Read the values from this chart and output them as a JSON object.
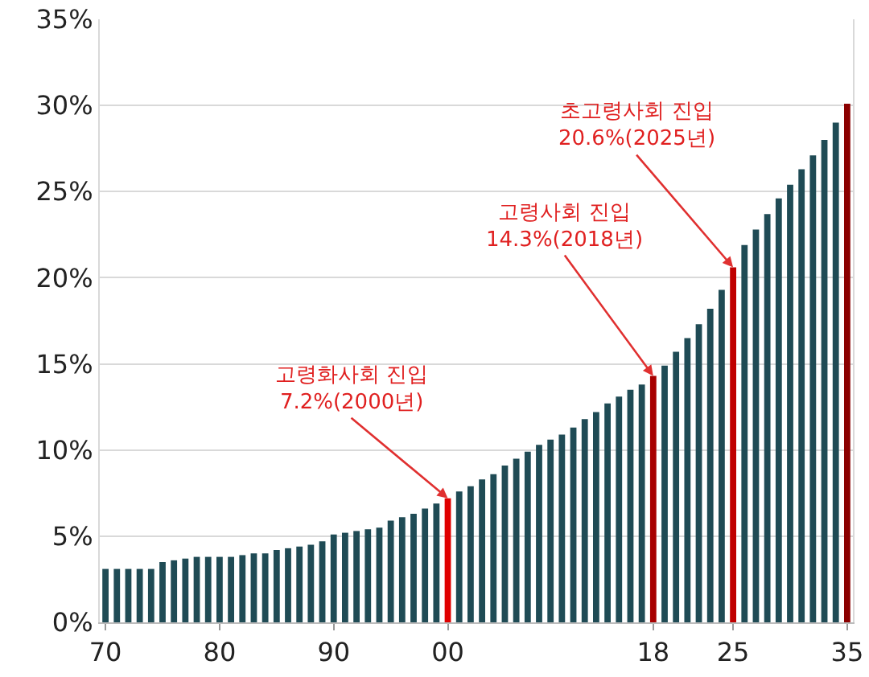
{
  "chart_data": {
    "type": "bar",
    "x": [
      1970,
      1971,
      1972,
      1973,
      1974,
      1975,
      1976,
      1977,
      1978,
      1979,
      1980,
      1981,
      1982,
      1983,
      1984,
      1985,
      1986,
      1987,
      1988,
      1989,
      1990,
      1991,
      1992,
      1993,
      1994,
      1995,
      1996,
      1997,
      1998,
      1999,
      2000,
      2001,
      2002,
      2003,
      2004,
      2005,
      2006,
      2007,
      2008,
      2009,
      2010,
      2011,
      2012,
      2013,
      2014,
      2015,
      2016,
      2017,
      2018,
      2019,
      2020,
      2021,
      2022,
      2023,
      2024,
      2025,
      2026,
      2027,
      2028,
      2029,
      2030,
      2031,
      2032,
      2033,
      2034,
      2035
    ],
    "values": [
      3.1,
      3.1,
      3.1,
      3.1,
      3.1,
      3.5,
      3.6,
      3.7,
      3.8,
      3.8,
      3.8,
      3.8,
      3.9,
      4.0,
      4.0,
      4.2,
      4.3,
      4.4,
      4.5,
      4.7,
      5.1,
      5.2,
      5.3,
      5.4,
      5.5,
      5.9,
      6.1,
      6.3,
      6.6,
      6.9,
      7.2,
      7.6,
      7.9,
      8.3,
      8.6,
      9.1,
      9.5,
      9.9,
      10.3,
      10.6,
      10.9,
      11.3,
      11.8,
      12.2,
      12.7,
      13.1,
      13.5,
      13.8,
      14.3,
      14.9,
      15.7,
      16.5,
      17.3,
      18.2,
      19.3,
      20.6,
      21.9,
      22.8,
      23.7,
      24.6,
      25.4,
      26.3,
      27.1,
      28.0,
      29.0,
      30.1
    ],
    "colors": [
      "#1f4b55",
      "#1f4b55",
      "#1f4b55",
      "#1f4b55",
      "#1f4b55",
      "#1f4b55",
      "#1f4b55",
      "#1f4b55",
      "#1f4b55",
      "#1f4b55",
      "#1f4b55",
      "#1f4b55",
      "#1f4b55",
      "#1f4b55",
      "#1f4b55",
      "#1f4b55",
      "#1f4b55",
      "#1f4b55",
      "#1f4b55",
      "#1f4b55",
      "#1f4b55",
      "#1f4b55",
      "#1f4b55",
      "#1f4b55",
      "#1f4b55",
      "#1f4b55",
      "#1f4b55",
      "#1f4b55",
      "#1f4b55",
      "#1f4b55",
      "#e00000",
      "#1f4b55",
      "#1f4b55",
      "#1f4b55",
      "#1f4b55",
      "#1f4b55",
      "#1f4b55",
      "#1f4b55",
      "#1f4b55",
      "#1f4b55",
      "#1f4b55",
      "#1f4b55",
      "#1f4b55",
      "#1f4b55",
      "#1f4b55",
      "#1f4b55",
      "#1f4b55",
      "#1f4b55",
      "#a80000",
      "#1f4b55",
      "#1f4b55",
      "#1f4b55",
      "#1f4b55",
      "#1f4b55",
      "#1f4b55",
      "#c00000",
      "#1f4b55",
      "#1f4b55",
      "#1f4b55",
      "#1f4b55",
      "#1f4b55",
      "#1f4b55",
      "#1f4b55",
      "#1f4b55",
      "#1f4b55",
      "#8b0000"
    ],
    "xlim": [
      1969.5,
      2035.5
    ],
    "xticks": [
      {
        "value": 1970,
        "label": "70"
      },
      {
        "value": 1980,
        "label": "80"
      },
      {
        "value": 1990,
        "label": "90"
      },
      {
        "value": 2000,
        "label": "00"
      },
      {
        "value": 2018,
        "label": "18"
      },
      {
        "value": 2025,
        "label": "25"
      },
      {
        "value": 2035,
        "label": "35"
      }
    ],
    "ylim": [
      0,
      35
    ],
    "yticks": [
      {
        "value": 0,
        "label": "0%"
      },
      {
        "value": 5,
        "label": "5%"
      },
      {
        "value": 10,
        "label": "10%"
      },
      {
        "value": 15,
        "label": "15%"
      },
      {
        "value": 20,
        "label": "20%"
      },
      {
        "value": 25,
        "label": "25%"
      },
      {
        "value": 30,
        "label": "30%"
      },
      {
        "value": 35,
        "label": "35%"
      }
    ],
    "grid": "y",
    "annotations": [
      {
        "text": "고령화사회 진입\n7.2%(2000년)",
        "x": 2000,
        "y": 7.2
      },
      {
        "text": "고령사회 진입\n14.3%(2018년)",
        "x": 2018,
        "y": 14.3
      },
      {
        "text": "초고령사회 진입\n20.6%(2025년)",
        "x": 2025,
        "y": 20.6
      }
    ]
  }
}
